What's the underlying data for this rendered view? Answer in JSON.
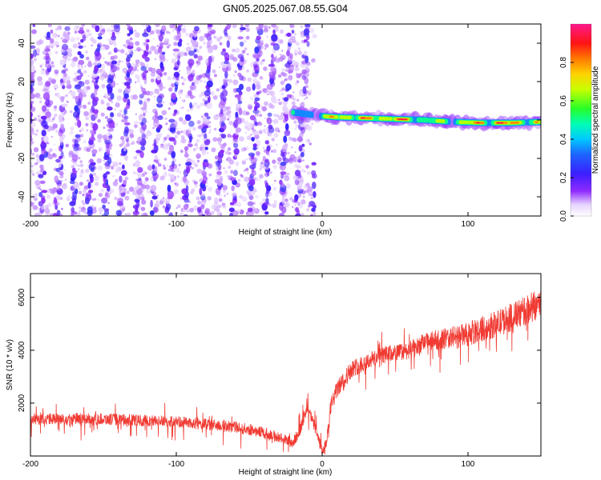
{
  "title": "GN05.2025.067.08.55.G04",
  "chart_data": [
    {
      "type": "heatmap",
      "xlabel": "Height of straight line (km)",
      "ylabel": "Frequency (Hz)",
      "xlim": [
        -200,
        150
      ],
      "ylim": [
        -50,
        50
      ],
      "xticks": [
        -200,
        -100,
        0,
        100
      ],
      "yticks": [
        -40,
        -20,
        0,
        20,
        40
      ],
      "colorbar": {
        "label": "Normalized spectral amplitude",
        "range": [
          0.0,
          1.0
        ],
        "ticks": [
          "0.0",
          "0.2",
          "0.4",
          "0.6",
          "0.8"
        ],
        "colormap": "rainbow (white → violet → blue → cyan → green → yellow → red → magenta)"
      },
      "features": {
        "noise_region_x": [
          -200,
          -5
        ],
        "noise_stripe_period_km": 11,
        "noise_amplitude": [
          0.05,
          0.25
        ],
        "signal_track": [
          {
            "x": -20,
            "freq": 4,
            "amp": 0.5
          },
          {
            "x": -10,
            "freq": 3,
            "amp": 0.4
          },
          {
            "x": 0,
            "freq": 2,
            "amp": 0.5
          },
          {
            "x": 10,
            "freq": 1.5,
            "amp": 0.85
          },
          {
            "x": 30,
            "freq": 1,
            "amp": 0.75
          },
          {
            "x": 50,
            "freq": 0.5,
            "amp": 0.9
          },
          {
            "x": 70,
            "freq": 0,
            "amp": 0.6
          },
          {
            "x": 90,
            "freq": -1,
            "amp": 0.6
          },
          {
            "x": 110,
            "freq": -1.5,
            "amp": 0.85
          },
          {
            "x": 130,
            "freq": -1.5,
            "amp": 0.85
          },
          {
            "x": 150,
            "freq": -1,
            "amp": 0.6
          }
        ]
      }
    },
    {
      "type": "line",
      "xlabel": "Height of straight line (km)",
      "ylabel": "SNR (10 * v/v)",
      "xlim": [
        -200,
        150
      ],
      "ylim": [
        0,
        6900
      ],
      "xticks": [
        -200,
        -100,
        0,
        100
      ],
      "yticks": [
        2000,
        4000,
        6000
      ],
      "color": "#f03a32",
      "trend": {
        "x": [
          -200,
          -150,
          -100,
          -60,
          -40,
          -20,
          -15,
          -10,
          -5,
          0,
          3,
          6,
          10,
          20,
          40,
          60,
          70,
          80,
          100,
          120,
          140,
          150
        ],
        "y": [
          1400,
          1400,
          1300,
          1100,
          900,
          500,
          1000,
          1800,
          1100,
          150,
          500,
          1900,
          2500,
          3300,
          3800,
          4000,
          4300,
          4400,
          4600,
          5000,
          5500,
          5800
        ]
      }
    }
  ]
}
